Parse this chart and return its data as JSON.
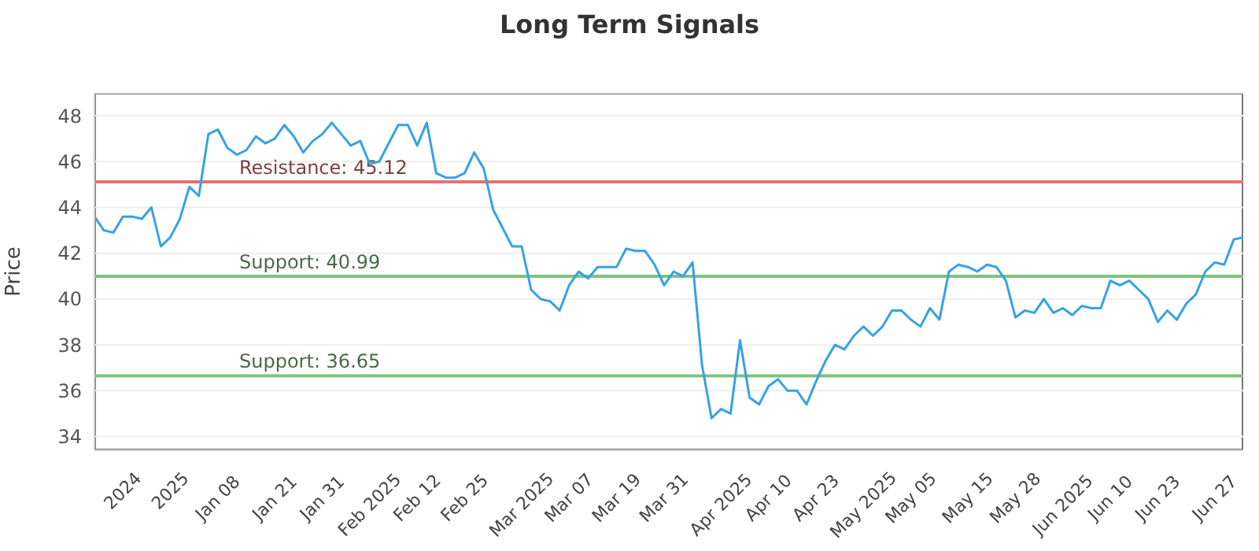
{
  "chart_data": {
    "type": "line",
    "title": "Long Term Signals",
    "ylabel": "Price",
    "categories": [
      null,
      null,
      null,
      "2024",
      null,
      null,
      null,
      null,
      "2025",
      null,
      null,
      null,
      null,
      "Jan 08",
      null,
      null,
      null,
      null,
      null,
      "Jan 21",
      null,
      null,
      null,
      null,
      "Jan 31",
      null,
      null,
      null,
      null,
      "Feb 2025",
      null,
      null,
      null,
      null,
      "Feb 12",
      null,
      null,
      null,
      null,
      "Feb 25",
      null,
      null,
      null,
      null,
      null,
      "Mar 2025",
      null,
      null,
      null,
      null,
      "Mar 07",
      null,
      null,
      null,
      null,
      "Mar 19",
      null,
      null,
      null,
      null,
      "Mar 31",
      null,
      null,
      null,
      null,
      null,
      "Apr 2025",
      null,
      null,
      null,
      null,
      "Apr 10",
      null,
      null,
      null,
      null,
      "Apr 23",
      null,
      null,
      null,
      null,
      "May 2025",
      null,
      null,
      null,
      null,
      "May 05",
      null,
      null,
      null,
      null,
      null,
      "May 15",
      null,
      null,
      null,
      null,
      "May 28",
      null,
      null,
      null,
      null,
      "Jun 2025",
      null,
      null,
      null,
      null,
      "Jun 10",
      null,
      null,
      null,
      null,
      "Jun 23",
      null,
      null,
      null,
      null,
      null,
      "Jun 27",
      null,
      null,
      null
    ],
    "series": [
      {
        "color": "#35a2e8",
        "values": [
          43.6,
          43.0,
          42.9,
          43.6,
          43.6,
          43.5,
          44.0,
          42.3,
          42.7,
          43.5,
          44.9,
          44.5,
          47.2,
          47.4,
          46.6,
          46.3,
          46.5,
          47.1,
          46.8,
          47.0,
          47.6,
          47.1,
          46.4,
          46.9,
          47.2,
          47.7,
          47.2,
          46.7,
          46.9,
          45.9,
          46.0,
          46.8,
          47.6,
          47.6,
          46.7,
          47.7,
          45.5,
          45.3,
          45.3,
          45.5,
          46.4,
          45.7,
          43.9,
          43.1,
          42.3,
          42.3,
          40.4,
          40.0,
          39.9,
          39.5,
          40.6,
          41.2,
          40.9,
          41.4,
          41.4,
          41.4,
          42.2,
          42.1,
          42.1,
          41.5,
          40.6,
          41.2,
          41.0,
          41.6,
          37.1,
          34.8,
          35.2,
          35.0,
          38.2,
          35.7,
          35.4,
          36.2,
          36.5,
          36.0,
          36.0,
          35.4,
          36.4,
          37.3,
          38.0,
          37.8,
          38.4,
          38.8,
          38.4,
          38.8,
          39.5,
          39.5,
          39.1,
          38.8,
          39.6,
          39.1,
          41.2,
          41.5,
          41.4,
          41.2,
          41.5,
          41.4,
          40.8,
          39.2,
          39.5,
          39.4,
          40.0,
          39.4,
          39.6,
          39.3,
          39.7,
          39.6,
          39.6,
          40.8,
          40.6,
          40.8,
          40.4,
          40.0,
          39.0,
          39.5,
          39.1,
          39.8,
          40.2,
          41.2,
          41.6,
          41.5,
          42.6,
          42.7
        ]
      }
    ],
    "ylim": [
      33.4,
      49
    ],
    "yticks": [
      34,
      36,
      38,
      40,
      42,
      44,
      46,
      48
    ],
    "grid": "y",
    "legend": false,
    "marker": "none",
    "line_style": "solid",
    "ref_lines": [
      {
        "axis": "y",
        "value": 45.12,
        "label": "Resistance: 45.12",
        "color": "#e57373"
      },
      {
        "axis": "y",
        "value": 40.99,
        "label": "Support: 40.99",
        "color": "#7cc47c"
      },
      {
        "axis": "y",
        "value": 36.65,
        "label": "Support: 36.65",
        "color": "#7cc47c"
      }
    ]
  }
}
